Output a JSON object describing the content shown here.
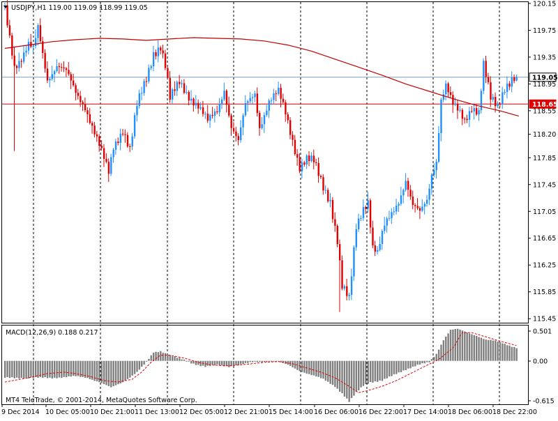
{
  "window": {
    "header": "USDJPY,H1  119.00 119.09 118.99 119.05",
    "menu_icon": "triangle-down-icon"
  },
  "colors": {
    "bull": "#1e90ff",
    "bear": "#e00000",
    "ma": "#c00000",
    "grid": "#000000",
    "bid_line": "#7f9fb8",
    "alert_line": "#e00000",
    "macd_hist": "#7f7f7f",
    "macd_signal": "#e00000"
  },
  "chart_data": [
    {
      "type": "candlestick",
      "symbol": "USDJPY",
      "timeframe": "H1",
      "ohlc_current": {
        "open": 119.0,
        "high": 119.09,
        "low": 118.99,
        "close": 119.05
      },
      "ylim": [
        115.39,
        120.17
      ],
      "yticks": [
        "120.15",
        "119.75",
        "119.35",
        "118.95",
        "118.55",
        "118.20",
        "117.85",
        "117.45",
        "117.05",
        "116.65",
        "116.25",
        "115.85",
        "115.45"
      ],
      "price_labels": [
        {
          "name": "bid",
          "value": 119.05,
          "text": "119.05"
        },
        {
          "name": "alert-level",
          "value": 118.65,
          "text": "118.65"
        }
      ],
      "moving_average": [
        {
          "t": 0,
          "v": 119.48
        },
        {
          "t": 10,
          "v": 119.53
        },
        {
          "t": 20,
          "v": 119.58
        },
        {
          "t": 30,
          "v": 119.61
        },
        {
          "t": 40,
          "v": 119.63
        },
        {
          "t": 50,
          "v": 119.62
        },
        {
          "t": 60,
          "v": 119.6
        },
        {
          "t": 70,
          "v": 119.62
        },
        {
          "t": 80,
          "v": 119.64
        },
        {
          "t": 90,
          "v": 119.63
        },
        {
          "t": 100,
          "v": 119.62
        },
        {
          "t": 110,
          "v": 119.59
        },
        {
          "t": 120,
          "v": 119.53
        },
        {
          "t": 130,
          "v": 119.44
        },
        {
          "t": 140,
          "v": 119.32
        },
        {
          "t": 150,
          "v": 119.2
        },
        {
          "t": 160,
          "v": 119.08
        },
        {
          "t": 170,
          "v": 118.95
        },
        {
          "t": 180,
          "v": 118.84
        },
        {
          "t": 190,
          "v": 118.73
        },
        {
          "t": 200,
          "v": 118.63
        },
        {
          "t": 210,
          "v": 118.55
        },
        {
          "t": 218,
          "v": 118.47
        }
      ],
      "price_anchors": [
        {
          "t": 0,
          "v": 120.07
        },
        {
          "t": 2,
          "v": 119.66
        },
        {
          "t": 4,
          "v": 119.23
        },
        {
          "t": 7,
          "v": 119.33
        },
        {
          "t": 10,
          "v": 119.52
        },
        {
          "t": 12,
          "v": 119.45
        },
        {
          "t": 14,
          "v": 119.78
        },
        {
          "t": 18,
          "v": 119.03
        },
        {
          "t": 22,
          "v": 119.23
        },
        {
          "t": 26,
          "v": 119.12
        },
        {
          "t": 30,
          "v": 118.82
        },
        {
          "t": 34,
          "v": 118.62
        },
        {
          "t": 38,
          "v": 118.22
        },
        {
          "t": 42,
          "v": 117.82
        },
        {
          "t": 44,
          "v": 117.62
        },
        {
          "t": 46,
          "v": 118.02
        },
        {
          "t": 50,
          "v": 118.28
        },
        {
          "t": 53,
          "v": 117.97
        },
        {
          "t": 56,
          "v": 118.62
        },
        {
          "t": 60,
          "v": 119.03
        },
        {
          "t": 63,
          "v": 119.42
        },
        {
          "t": 66,
          "v": 119.52
        },
        {
          "t": 68,
          "v": 119.22
        },
        {
          "t": 70,
          "v": 118.72
        },
        {
          "t": 74,
          "v": 118.97
        },
        {
          "t": 78,
          "v": 118.78
        },
        {
          "t": 82,
          "v": 118.62
        },
        {
          "t": 86,
          "v": 118.38
        },
        {
          "t": 90,
          "v": 118.55
        },
        {
          "t": 93,
          "v": 118.88
        },
        {
          "t": 96,
          "v": 118.32
        },
        {
          "t": 99,
          "v": 118.08
        },
        {
          "t": 102,
          "v": 118.62
        },
        {
          "t": 106,
          "v": 118.82
        },
        {
          "t": 108,
          "v": 118.32
        },
        {
          "t": 112,
          "v": 118.68
        },
        {
          "t": 116,
          "v": 118.82
        },
        {
          "t": 119,
          "v": 118.52
        },
        {
          "t": 122,
          "v": 118.12
        },
        {
          "t": 125,
          "v": 117.72
        },
        {
          "t": 128,
          "v": 117.82
        },
        {
          "t": 131,
          "v": 117.78
        },
        {
          "t": 135,
          "v": 117.42
        },
        {
          "t": 138,
          "v": 117.22
        },
        {
          "t": 141,
          "v": 116.62
        },
        {
          "t": 143,
          "v": 115.92
        },
        {
          "t": 146,
          "v": 115.72
        },
        {
          "t": 149,
          "v": 116.82
        },
        {
          "t": 152,
          "v": 117.12
        },
        {
          "t": 154,
          "v": 117.22
        },
        {
          "t": 156,
          "v": 116.52
        },
        {
          "t": 158,
          "v": 116.42
        },
        {
          "t": 161,
          "v": 116.82
        },
        {
          "t": 164,
          "v": 117.02
        },
        {
          "t": 167,
          "v": 117.22
        },
        {
          "t": 170,
          "v": 117.52
        },
        {
          "t": 173,
          "v": 117.12
        },
        {
          "t": 176,
          "v": 117.02
        },
        {
          "t": 179,
          "v": 117.22
        },
        {
          "t": 181,
          "v": 117.62
        },
        {
          "t": 183,
          "v": 117.82
        },
        {
          "t": 185,
          "v": 118.72
        },
        {
          "t": 187,
          "v": 118.92
        },
        {
          "t": 190,
          "v": 118.62
        },
        {
          "t": 193,
          "v": 118.52
        },
        {
          "t": 195,
          "v": 118.42
        },
        {
          "t": 198,
          "v": 118.62
        },
        {
          "t": 201,
          "v": 118.52
        },
        {
          "t": 203,
          "v": 119.22
        },
        {
          "t": 206,
          "v": 118.72
        },
        {
          "t": 209,
          "v": 118.62
        },
        {
          "t": 212,
          "v": 118.92
        },
        {
          "t": 215,
          "v": 119.02
        },
        {
          "t": 217,
          "v": 119.05
        }
      ],
      "xtick_labels": [
        "9 Dec 2014",
        "10 Dec 05:00",
        "10 Dec 21:00",
        "11 Dec 13:00",
        "12 Dec 05:00",
        "12 Dec 21:00",
        "15 Dec 14:00",
        "16 Dec 06:00",
        "16 Dec 22:00",
        "17 Dec 14:00",
        "18 Dec 06:00",
        "18 Dec 22:00"
      ],
      "grid": "vertical dotted at x-ticks"
    },
    {
      "type": "histogram",
      "indicator": "MACD",
      "label": "MACD(12,26,9) 0.188 0.217",
      "macd_current": 0.188,
      "signal_current": 0.217,
      "ylim": [
        -0.615,
        0.501
      ],
      "yticks": [
        "0.501",
        "0.00",
        "-0.615"
      ],
      "histogram_anchors": [
        {
          "t": 0,
          "v": -0.24
        },
        {
          "t": 20,
          "v": -0.24
        },
        {
          "t": 30,
          "v": -0.22
        },
        {
          "t": 35,
          "v": -0.24
        },
        {
          "t": 40,
          "v": -0.3
        },
        {
          "t": 45,
          "v": -0.38
        },
        {
          "t": 50,
          "v": -0.3
        },
        {
          "t": 56,
          "v": -0.16
        },
        {
          "t": 60,
          "v": -0.02
        },
        {
          "t": 63,
          "v": 0.12
        },
        {
          "t": 66,
          "v": 0.14
        },
        {
          "t": 70,
          "v": 0.08
        },
        {
          "t": 75,
          "v": 0.02
        },
        {
          "t": 80,
          "v": -0.04
        },
        {
          "t": 85,
          "v": -0.08
        },
        {
          "t": 90,
          "v": -0.06
        },
        {
          "t": 95,
          "v": -0.08
        },
        {
          "t": 100,
          "v": -0.05
        },
        {
          "t": 105,
          "v": -0.02
        },
        {
          "t": 110,
          "v": -0.01
        },
        {
          "t": 115,
          "v": 0.0
        },
        {
          "t": 120,
          "v": -0.06
        },
        {
          "t": 125,
          "v": -0.14
        },
        {
          "t": 130,
          "v": -0.2
        },
        {
          "t": 135,
          "v": -0.26
        },
        {
          "t": 140,
          "v": -0.36
        },
        {
          "t": 143,
          "v": -0.46
        },
        {
          "t": 146,
          "v": -0.58
        },
        {
          "t": 149,
          "v": -0.45
        },
        {
          "t": 152,
          "v": -0.35
        },
        {
          "t": 155,
          "v": -0.3
        },
        {
          "t": 160,
          "v": -0.28
        },
        {
          "t": 165,
          "v": -0.2
        },
        {
          "t": 170,
          "v": -0.12
        },
        {
          "t": 175,
          "v": -0.06
        },
        {
          "t": 180,
          "v": -0.02
        },
        {
          "t": 183,
          "v": 0.1
        },
        {
          "t": 186,
          "v": 0.3
        },
        {
          "t": 189,
          "v": 0.44
        },
        {
          "t": 192,
          "v": 0.45
        },
        {
          "t": 196,
          "v": 0.4
        },
        {
          "t": 200,
          "v": 0.36
        },
        {
          "t": 204,
          "v": 0.3
        },
        {
          "t": 208,
          "v": 0.28
        },
        {
          "t": 212,
          "v": 0.24
        },
        {
          "t": 217,
          "v": 0.188
        }
      ],
      "signal_anchors": [
        {
          "t": 0,
          "v": -0.3
        },
        {
          "t": 10,
          "v": -0.24
        },
        {
          "t": 18,
          "v": -0.18
        },
        {
          "t": 25,
          "v": -0.16
        },
        {
          "t": 30,
          "v": -0.18
        },
        {
          "t": 36,
          "v": -0.22
        },
        {
          "t": 42,
          "v": -0.28
        },
        {
          "t": 48,
          "v": -0.3
        },
        {
          "t": 54,
          "v": -0.26
        },
        {
          "t": 58,
          "v": -0.16
        },
        {
          "t": 62,
          "v": -0.02
        },
        {
          "t": 66,
          "v": 0.08
        },
        {
          "t": 70,
          "v": 0.08
        },
        {
          "t": 76,
          "v": 0.04
        },
        {
          "t": 82,
          "v": -0.02
        },
        {
          "t": 88,
          "v": -0.06
        },
        {
          "t": 95,
          "v": -0.07
        },
        {
          "t": 102,
          "v": -0.05
        },
        {
          "t": 110,
          "v": -0.02
        },
        {
          "t": 116,
          "v": -0.01
        },
        {
          "t": 122,
          "v": -0.04
        },
        {
          "t": 128,
          "v": -0.1
        },
        {
          "t": 134,
          "v": -0.16
        },
        {
          "t": 140,
          "v": -0.24
        },
        {
          "t": 146,
          "v": -0.36
        },
        {
          "t": 150,
          "v": -0.45
        },
        {
          "t": 154,
          "v": -0.42
        },
        {
          "t": 160,
          "v": -0.36
        },
        {
          "t": 166,
          "v": -0.28
        },
        {
          "t": 172,
          "v": -0.18
        },
        {
          "t": 178,
          "v": -0.08
        },
        {
          "t": 184,
          "v": 0.02
        },
        {
          "t": 190,
          "v": 0.18
        },
        {
          "t": 194,
          "v": 0.4
        },
        {
          "t": 198,
          "v": 0.4
        },
        {
          "t": 204,
          "v": 0.34
        },
        {
          "t": 210,
          "v": 0.28
        },
        {
          "t": 217,
          "v": 0.217
        }
      ]
    }
  ],
  "footer": {
    "copyright": "MT4 TeleTrade, © 2001-2014, MetaQuotes Software Corp."
  }
}
